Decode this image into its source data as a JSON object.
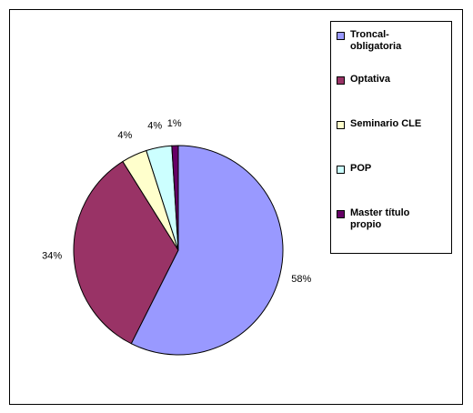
{
  "chart_data": {
    "type": "pie",
    "categories": [
      "Troncal-obligatoria",
      "Optativa",
      "Seminario CLE",
      "POP",
      "Master título propio"
    ],
    "values": [
      58,
      34,
      4,
      4,
      1
    ],
    "value_labels": [
      "58%",
      "34%",
      "4%",
      "4%",
      "1%"
    ],
    "colors": [
      "#9999ff",
      "#993366",
      "#ffffcc",
      "#ccffff",
      "#660066"
    ],
    "legend": "right"
  }
}
